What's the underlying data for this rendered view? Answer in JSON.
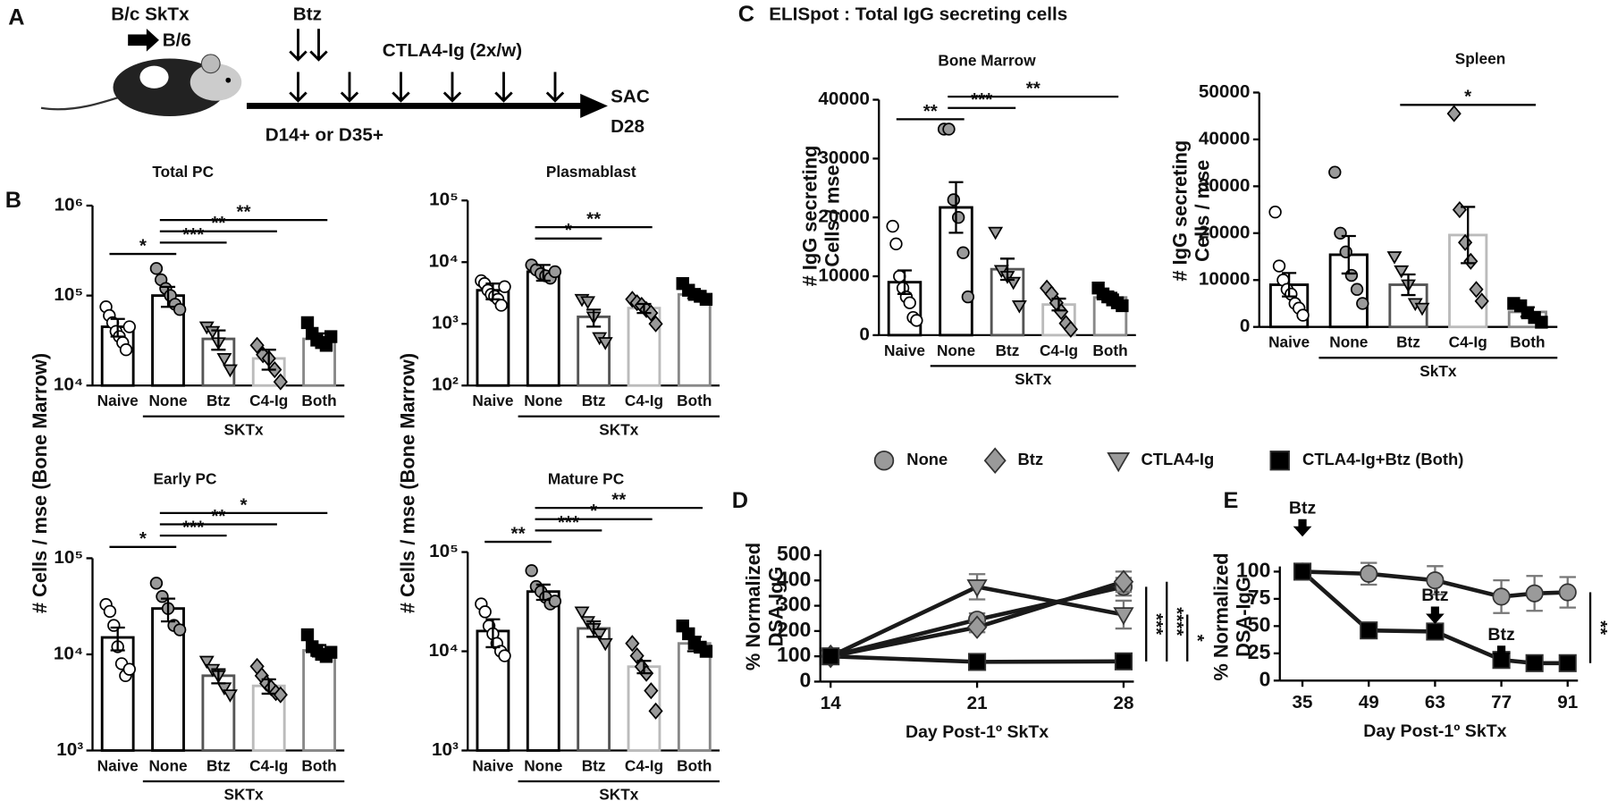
{
  "panel_labels": [
    "A",
    "B",
    "C",
    "D",
    "E"
  ],
  "diagram": {
    "donor": "B/c SkTx",
    "recipient": "B/6",
    "btz": "Btz",
    "treatment": "CTLA4-Ig (2x/w)",
    "start": "D14+ or D35+",
    "end": [
      "SAC",
      "D28"
    ]
  },
  "panel_c_title": "ELISpot : Total IgG secreting cells",
  "group_styles": {
    "markers": [
      "circle-open",
      "circle",
      "triangle-down",
      "diamond",
      "square"
    ],
    "marker_colors": [
      "#ffffff",
      "#9a9a9a",
      "#9a9a9a",
      "#9a9a9a",
      "#000000"
    ],
    "bar_edges": [
      "#000000",
      "#000000",
      "#555555",
      "#bbbbbb",
      "#888888"
    ]
  },
  "chart_data": [
    {
      "type": "bar",
      "title": "Total PC",
      "ylabel": [
        "# Cells / mse (Bone Marrow)"
      ],
      "log": true,
      "categories": [
        "Naive",
        "None",
        "Btz",
        "C4-Ig",
        "Both"
      ],
      "values": [
        45000,
        100000,
        33000,
        20000,
        33000
      ],
      "errors": [
        10000,
        25000,
        8000,
        5000,
        5000
      ],
      "points": [
        [
          75000,
          60000,
          50000,
          40000,
          35000,
          30000,
          25000,
          45000
        ],
        [
          200000,
          150000,
          120000,
          100000,
          80000,
          70000
        ],
        [
          45000,
          40000,
          30000,
          20000,
          15000
        ],
        [
          28000,
          22000,
          20000,
          15000,
          11000
        ],
        [
          50000,
          38000,
          32000,
          30000,
          28000,
          35000
        ]
      ],
      "ylim": [
        10000,
        1000000
      ],
      "yticks": [
        {
          "value": 10000,
          "label": "10⁴"
        },
        {
          "value": 100000,
          "label": "10⁵"
        },
        {
          "value": 1000000,
          "label": "10⁶"
        }
      ],
      "group_label": "SKTx",
      "significance": [
        {
          "label": "*",
          "from": 0,
          "to": 1
        },
        {
          "label": "***",
          "from": 1,
          "to": 2
        },
        {
          "label": "**",
          "from": 1,
          "to": 3
        },
        {
          "label": "**",
          "from": 1,
          "to": 4
        }
      ]
    },
    {
      "type": "bar",
      "title": "Plasmablast",
      "ylabel": [
        "# Cells / mse (Bone Marrow)"
      ],
      "log": true,
      "categories": [
        "Naive",
        "None",
        "Btz",
        "C4-Ig",
        "Both"
      ],
      "values": [
        3500,
        7000,
        1300,
        1800,
        3000
      ],
      "errors": [
        1000,
        2000,
        400,
        300,
        400
      ],
      "points": [
        [
          5000,
          4500,
          3500,
          3000,
          2800,
          2500,
          2000,
          4000
        ],
        [
          9000,
          7500,
          6500,
          6000,
          5500,
          7000
        ],
        [
          2500,
          2300,
          1300,
          600,
          500
        ],
        [
          2500,
          2200,
          2000,
          1700,
          1500,
          1000
        ],
        [
          4500,
          3500,
          3000,
          2800,
          2500
        ]
      ],
      "ylim": [
        100,
        100000
      ],
      "yticks": [
        {
          "value": 100,
          "label": "10²"
        },
        {
          "value": 1000,
          "label": "10³"
        },
        {
          "value": 10000,
          "label": "10⁴"
        },
        {
          "value": 100000,
          "label": "10⁵"
        }
      ],
      "group_label": "SKTx",
      "significance": [
        {
          "label": "*",
          "from": 1,
          "to": 2
        },
        {
          "label": "**",
          "from": 1,
          "to": 3
        }
      ]
    },
    {
      "type": "bar",
      "title": "Early PC",
      "log": true,
      "categories": [
        "Naive",
        "None",
        "Btz",
        "C4-Ig",
        "Both"
      ],
      "values": [
        15000,
        30000,
        6000,
        4700,
        11000
      ],
      "errors": [
        4000,
        8000,
        1000,
        800,
        1500
      ],
      "points": [
        [
          33000,
          28000,
          20000,
          12000,
          8000,
          6000,
          7000
        ],
        [
          55000,
          40000,
          30000,
          20000,
          18000
        ],
        [
          8500,
          7000,
          6000,
          4500,
          3800
        ],
        [
          7500,
          6000,
          5000,
          4500,
          4000,
          3800
        ],
        [
          16000,
          12000,
          11000,
          10000,
          9500,
          10500
        ]
      ],
      "ylim": [
        1000,
        100000
      ],
      "yticks": [
        {
          "value": 1000,
          "label": "10³"
        },
        {
          "value": 10000,
          "label": "10⁴"
        },
        {
          "value": 100000,
          "label": "10⁵"
        }
      ],
      "group_label": "SKTx",
      "significance": [
        {
          "label": "*",
          "from": 0,
          "to": 1
        },
        {
          "label": "***",
          "from": 1,
          "to": 2
        },
        {
          "label": "**",
          "from": 1,
          "to": 3
        },
        {
          "label": "*",
          "from": 1,
          "to": 4
        }
      ]
    },
    {
      "type": "bar",
      "title": "Mature PC",
      "log": true,
      "categories": [
        "Naive",
        "None",
        "Btz",
        "C4-Ig",
        "Both"
      ],
      "values": [
        16000,
        40000,
        17000,
        7000,
        12000
      ],
      "errors": [
        5000,
        7000,
        3000,
        1000,
        2000
      ],
      "points": [
        [
          30000,
          25000,
          18000,
          15000,
          12000,
          10000,
          9000
        ],
        [
          65000,
          45000,
          40000,
          35000,
          30000,
          32000
        ],
        [
          25000,
          20000,
          17000,
          15000,
          12000
        ],
        [
          12000,
          9000,
          7000,
          6000,
          4000,
          2500
        ],
        [
          18000,
          15000,
          12000,
          11000,
          10000
        ]
      ],
      "ylim": [
        1000,
        100000
      ],
      "yticks": [
        {
          "value": 1000,
          "label": "10³"
        },
        {
          "value": 10000,
          "label": "10⁴"
        },
        {
          "value": 100000,
          "label": "10⁵"
        }
      ],
      "group_label": "SKTx",
      "significance": [
        {
          "label": "**",
          "from": 0,
          "to": 1
        },
        {
          "label": "***",
          "from": 1,
          "to": 2
        },
        {
          "label": "*",
          "from": 1,
          "to": 3
        },
        {
          "label": "**",
          "from": 1,
          "to": 4
        }
      ]
    },
    {
      "type": "bar",
      "title": "Bone Marrow",
      "ylabel": [
        "# IgG secreting",
        "Cells / mse"
      ],
      "log": false,
      "categories": [
        "Naive",
        "None",
        "Btz",
        "C4-Ig",
        "Both"
      ],
      "values": [
        9000,
        21700,
        11200,
        5200,
        6400
      ],
      "errors": [
        2000,
        4300,
        1800,
        1000,
        800
      ],
      "points": [
        [
          18500,
          15500,
          10000,
          8000,
          6500,
          5500,
          3000,
          2500
        ],
        [
          35000,
          35000,
          23000,
          20000,
          14000,
          6500
        ],
        [
          17500,
          11000,
          10000,
          9000,
          5000
        ],
        [
          8000,
          7000,
          5500,
          4000,
          2000,
          1000
        ],
        [
          8000,
          7000,
          6500,
          6000,
          5500,
          5000
        ]
      ],
      "ylim": [
        0,
        40000
      ],
      "yticks": [
        0,
        10000,
        20000,
        30000,
        40000
      ],
      "group_label": "SkTx",
      "significance": [
        {
          "label": "**",
          "from": 0,
          "to": 1
        },
        {
          "label": "***",
          "from": 1,
          "to": 2
        },
        {
          "label": "**",
          "from": 1,
          "to": 4
        }
      ]
    },
    {
      "type": "bar",
      "title": "Spleen",
      "ylabel": [
        "# IgG secreting",
        "Cells / mse"
      ],
      "log": false,
      "categories": [
        "Naive",
        "None",
        "Btz",
        "C4-Ig",
        "Both"
      ],
      "values": [
        9000,
        15400,
        9000,
        19600,
        3200
      ],
      "errors": [
        2500,
        4000,
        2200,
        6000,
        1000
      ],
      "points": [
        [
          24500,
          13000,
          10000,
          8000,
          7000,
          5000,
          4000,
          2500
        ],
        [
          33000,
          20000,
          16000,
          11000,
          8000,
          5000
        ],
        [
          15000,
          12000,
          9000,
          5000,
          4000
        ],
        [
          45500,
          25000,
          18000,
          14000,
          8000,
          5500
        ],
        [
          5000,
          4500,
          3000,
          2000,
          1000
        ]
      ],
      "ylim": [
        0,
        50000
      ],
      "yticks": [
        0,
        10000,
        20000,
        30000,
        40000,
        50000
      ],
      "group_label": "SkTx",
      "significance": [
        {
          "label": "*",
          "from": 2,
          "to": 4
        }
      ]
    },
    {
      "type": "line",
      "xlabel": "Day Post-1º SkTx",
      "ylabel": [
        "% Normalized",
        "DSA-IgG"
      ],
      "x": [
        14,
        21,
        28
      ],
      "xlim": [
        14,
        28
      ],
      "xticks": [
        14,
        21,
        28
      ],
      "ylim": [
        0,
        500
      ],
      "yticks": [
        0,
        100,
        200,
        300,
        400,
        500
      ],
      "series": [
        {
          "name": "None",
          "marker": "circle",
          "color": "#9a9a9a",
          "values": [
            100,
            245,
            375
          ],
          "errors": [
            0,
            25,
            35
          ]
        },
        {
          "name": "Btz",
          "marker": "diamond",
          "color": "#9a9a9a",
          "values": [
            100,
            215,
            395
          ],
          "errors": [
            0,
            20,
            40
          ]
        },
        {
          "name": "CTLA4-Ig",
          "marker": "triangle-down",
          "color": "#9a9a9a",
          "values": [
            100,
            375,
            265
          ],
          "errors": [
            0,
            50,
            55
          ]
        },
        {
          "name": "CTLA4-Ig+Btz (Both)",
          "marker": "square",
          "color": "#000000",
          "values": [
            100,
            78,
            80
          ],
          "errors": [
            0,
            8,
            8
          ]
        }
      ],
      "significance": [
        {
          "label": "***",
          "from": 0,
          "to": 3
        },
        {
          "label": "****",
          "from": 1,
          "to": 3
        },
        {
          "label": "*",
          "from": 2,
          "to": 3
        }
      ]
    },
    {
      "type": "line",
      "xlabel": "Day Post-1º SkTx",
      "ylabel": [
        "% Normalized",
        "DSA-IgG"
      ],
      "x": [
        35,
        49,
        63,
        77,
        84,
        91
      ],
      "xlim": [
        35,
        91
      ],
      "xticks": [
        35,
        49,
        63,
        77,
        91
      ],
      "ylim": [
        0,
        100
      ],
      "yticks": [
        0,
        25,
        50,
        75,
        100
      ],
      "series": [
        {
          "name": "None",
          "marker": "circle",
          "color": "#9a9a9a",
          "values": [
            100,
            98,
            92,
            77,
            80,
            81
          ],
          "errors": [
            0,
            10,
            13,
            15,
            16,
            14
          ]
        },
        {
          "name": "CTLA4-Ig+Btz (Both)",
          "marker": "square",
          "color": "#000000",
          "values": [
            100,
            46,
            45,
            19,
            16,
            16
          ],
          "errors": [
            0,
            2,
            2,
            2,
            2,
            2
          ]
        }
      ],
      "significance": [
        {
          "label": "**",
          "from": 0,
          "to": 1
        }
      ],
      "annotations": [
        {
          "label": "Btz",
          "x": 35
        },
        {
          "label": "Btz",
          "x": 63
        },
        {
          "label": "Btz",
          "x": 77
        }
      ]
    }
  ]
}
